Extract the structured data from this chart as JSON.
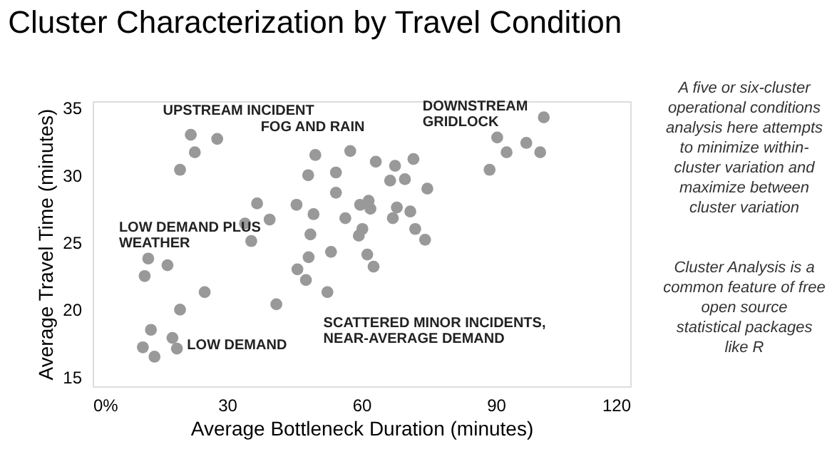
{
  "chart_data": {
    "type": "scatter",
    "title": "Cluster Characterization by Travel Condition",
    "xlabel": "Average Bottleneck Duration (minutes)",
    "ylabel": "Average Travel Time (minutes)",
    "xlim": [
      0,
      120
    ],
    "xticks": [
      {
        "value": 0,
        "label": "0%"
      },
      30,
      60,
      90,
      120
    ],
    "ylim": [
      14.3,
      35.5
    ],
    "yticks": [
      15,
      20,
      25,
      30,
      35
    ],
    "grid": false,
    "legend": false,
    "marker": "circle",
    "series": [
      {
        "name": "UPSTREAM INCIDENT",
        "color": "#999999",
        "x": [
          21.9,
          27.8,
          22.8,
          19.5
        ],
        "values": [
          33.0,
          32.7,
          31.7,
          30.4
        ]
      },
      {
        "name": "FOG AND RAIN",
        "color": "#999999",
        "x": [
          36.7,
          34,
          39.5,
          35.4,
          45.5,
          48.1,
          49.7,
          49.3,
          48.6,
          57.5,
          54.3,
          54.3,
          56.4
        ],
        "values": [
          27.9,
          26.4,
          26.7,
          25.1,
          27.8,
          30,
          31.5,
          27.1,
          25.6,
          31.8,
          30.2,
          28.7,
          26.8
        ]
      },
      {
        "name": "DOWNSTREAM GRIDLOCK",
        "color": "#999999",
        "x": [
          100.7,
          90.3,
          96.8,
          92.4,
          99.9,
          88.6
        ],
        "values": [
          34.3,
          32.8,
          32.4,
          31.7,
          31.7,
          30.4
        ]
      },
      {
        "name": "LOW DEMAND PLUS WEATHER",
        "color": "#999999",
        "x": [
          12.4,
          16.7,
          11.6
        ],
        "values": [
          23.8,
          23.3,
          22.5
        ]
      },
      {
        "name": "LOW DEMAND",
        "color": "#999999",
        "x": [
          25,
          19.5,
          13,
          17.8,
          11.2,
          18.8,
          13.8
        ],
        "values": [
          21.3,
          20.0,
          18.5,
          17.9,
          17.2,
          17.1,
          16.5
        ]
      },
      {
        "name": "SCATTERED MINOR INCIDENTS, NEAR-AVERAGE DEMAND",
        "color": "#999999",
        "x": [
          41,
          45.7,
          48.2,
          47.6,
          53.2,
          52.4,
          63.2,
          67.5,
          71.6,
          66.4,
          69.7,
          74.7,
          59.7,
          61.6,
          62,
          67.9,
          70.9,
          67,
          60.2,
          59.4,
          72,
          74.2,
          61.3,
          62.7
        ],
        "values": [
          20.4,
          23,
          23.9,
          22.2,
          24.3,
          21.3,
          31.0,
          30.7,
          31.2,
          29.6,
          29.7,
          29.0,
          27.8,
          28.1,
          27.5,
          27.6,
          27.3,
          26.8,
          26.0,
          25.5,
          26.0,
          25.2,
          24.1,
          23.2
        ]
      }
    ],
    "annotations": [
      "A five or six-cluster operational conditions analysis here attempts to minimize within-cluster variation and maximize between cluster variation",
      "Cluster Analysis is a common feature of free open source statistical packages like R"
    ]
  }
}
